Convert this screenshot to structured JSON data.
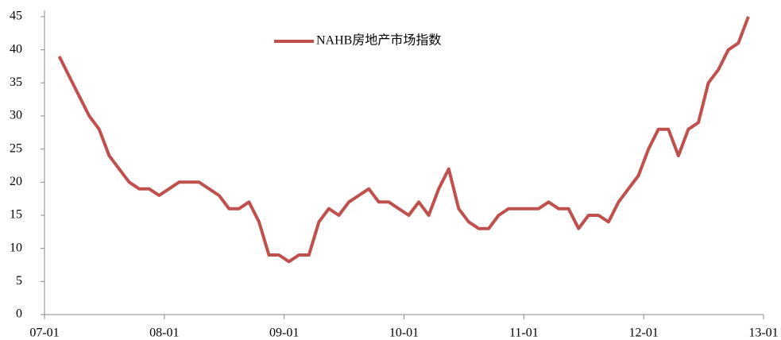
{
  "chart_data": {
    "type": "line",
    "x": [
      "07-02",
      "07-03",
      "07-04",
      "07-05",
      "07-06",
      "07-07",
      "07-08",
      "07-09",
      "07-10",
      "07-11",
      "07-12",
      "08-01",
      "08-02",
      "08-03",
      "08-04",
      "08-05",
      "08-06",
      "08-07",
      "08-08",
      "08-09",
      "08-10",
      "08-11",
      "08-12",
      "09-01",
      "09-02",
      "09-03",
      "09-04",
      "09-05",
      "09-06",
      "09-07",
      "09-08",
      "09-09",
      "09-10",
      "09-11",
      "09-12",
      "10-01",
      "10-02",
      "10-03",
      "10-04",
      "10-05",
      "10-06",
      "10-07",
      "10-08",
      "10-09",
      "10-10",
      "10-11",
      "10-12",
      "11-01",
      "11-02",
      "11-03",
      "11-04",
      "11-05",
      "11-06",
      "11-07",
      "11-08",
      "11-09",
      "11-10",
      "11-11",
      "11-12",
      "12-01",
      "12-02",
      "12-03",
      "12-04",
      "12-05",
      "12-06",
      "12-07",
      "12-08",
      "12-09",
      "12-10",
      "12-11"
    ],
    "series": [
      {
        "name": "NAHB房地产市场指数",
        "color": "#c0504d",
        "values": [
          39,
          36,
          33,
          30,
          28,
          24,
          22,
          20,
          19,
          19,
          18,
          19,
          20,
          20,
          20,
          19,
          18,
          16,
          16,
          17,
          14,
          9,
          9,
          8,
          9,
          9,
          14,
          16,
          15,
          17,
          18,
          19,
          17,
          17,
          16,
          15,
          17,
          15,
          19,
          22,
          16,
          14,
          13,
          13,
          15,
          16,
          16,
          16,
          16,
          17,
          16,
          16,
          13,
          15,
          15,
          14,
          17,
          19,
          21,
          25,
          28,
          28,
          24,
          28,
          29,
          35,
          37,
          40,
          41,
          45
        ]
      }
    ],
    "xticks": [
      "07-01",
      "08-01",
      "09-01",
      "10-01",
      "11-01",
      "12-01",
      "13-01"
    ],
    "ylim": [
      0,
      45
    ],
    "yticks": [
      0,
      5,
      10,
      15,
      20,
      25,
      30,
      35,
      40,
      45
    ],
    "legend": "top"
  }
}
